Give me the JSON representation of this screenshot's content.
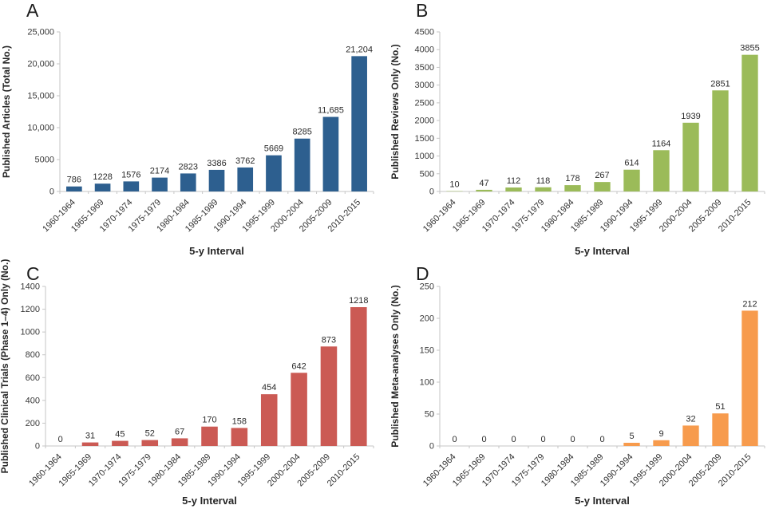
{
  "style": {
    "axis_color": "#C6C6C6",
    "tick_label_color": "#3A3A3A",
    "value_label_color": "#2B2B2B",
    "title_color": "#262626"
  },
  "chart_data": [
    {
      "type": "bar",
      "panel": "A",
      "title": "",
      "ylabel": "Published Articles (Total No.)",
      "xlabel": "5-y Interval",
      "categories": [
        "1960-1964",
        "1965-1969",
        "1970-1974",
        "1975-1979",
        "1980-1984",
        "1985-1989",
        "1990-1994",
        "1995-1999",
        "2000-2004",
        "2005-2009",
        "2010-2015"
      ],
      "values": [
        786,
        1228,
        1576,
        2174,
        2823,
        3386,
        3762,
        5669,
        8285,
        11685,
        21204
      ],
      "value_labels": [
        "786",
        "1228",
        "1576",
        "2174",
        "2823",
        "3386",
        "3762",
        "5669",
        "8285",
        "11,685",
        "21,204"
      ],
      "ylim": [
        0,
        25000
      ],
      "ytick_labels": [
        "0",
        "5000",
        "10,000",
        "15,000",
        "20,000",
        "25,000"
      ],
      "bar_color": "#2D5F8F",
      "grid": false,
      "legend": null
    },
    {
      "type": "bar",
      "panel": "B",
      "title": "",
      "ylabel": "Published Reviews Only (No.)",
      "xlabel": "5-y Interval",
      "categories": [
        "1960-1964",
        "1965-1969",
        "1970-1974",
        "1975-1979",
        "1980-1984",
        "1985-1989",
        "1990-1994",
        "1995-1999",
        "2000-2004",
        "2005-2009",
        "2010-2015"
      ],
      "values": [
        10,
        47,
        112,
        118,
        178,
        267,
        614,
        1164,
        1939,
        2851,
        3855
      ],
      "value_labels": [
        "10",
        "47",
        "112",
        "118",
        "178",
        "267",
        "614",
        "1164",
        "1939",
        "2851",
        "3855"
      ],
      "ylim": [
        0,
        4500
      ],
      "ytick_labels": [
        "0",
        "500",
        "1000",
        "1500",
        "2000",
        "2500",
        "3000",
        "3500",
        "4000",
        "4500"
      ],
      "bar_color": "#9BBB59",
      "grid": false,
      "legend": null
    },
    {
      "type": "bar",
      "panel": "C",
      "title": "",
      "ylabel": "Published Clinical Trials (Phase 1–4) Only (No.)",
      "xlabel": "5-y Interval",
      "categories": [
        "1960-1964",
        "1965-1969",
        "1970-1974",
        "1975-1979",
        "1980-1984",
        "1985-1989",
        "1990-1994",
        "1995-1999",
        "2000-2004",
        "2005-2009",
        "2010-2015"
      ],
      "values": [
        0,
        31,
        45,
        52,
        67,
        170,
        158,
        454,
        642,
        873,
        1218
      ],
      "value_labels": [
        "0",
        "31",
        "45",
        "52",
        "67",
        "170",
        "158",
        "454",
        "642",
        "873",
        "1218"
      ],
      "ylim": [
        0,
        1400
      ],
      "ytick_labels": [
        "0",
        "200",
        "400",
        "600",
        "800",
        "1000",
        "1200",
        "1400"
      ],
      "bar_color": "#CB5A54",
      "grid": false,
      "legend": null
    },
    {
      "type": "bar",
      "panel": "D",
      "title": "",
      "ylabel": "Published Meta-analyses Only (No.)",
      "xlabel": "5-y Interval",
      "categories": [
        "1960-1964",
        "1965-1969",
        "1970-1974",
        "1975-1979",
        "1980-1984",
        "1985-1989",
        "1990-1994",
        "1995-1999",
        "2000-2004",
        "2005-2009",
        "2010-2015"
      ],
      "values": [
        0,
        0,
        0,
        0,
        0,
        0,
        5,
        9,
        32,
        51,
        212
      ],
      "value_labels": [
        "0",
        "0",
        "0",
        "0",
        "0",
        "0",
        "5",
        "9",
        "32",
        "51",
        "212"
      ],
      "ylim": [
        0,
        250
      ],
      "ytick_labels": [
        "0",
        "50",
        "100",
        "150",
        "200",
        "250"
      ],
      "bar_color": "#F79B4D",
      "grid": false,
      "legend": null
    }
  ]
}
